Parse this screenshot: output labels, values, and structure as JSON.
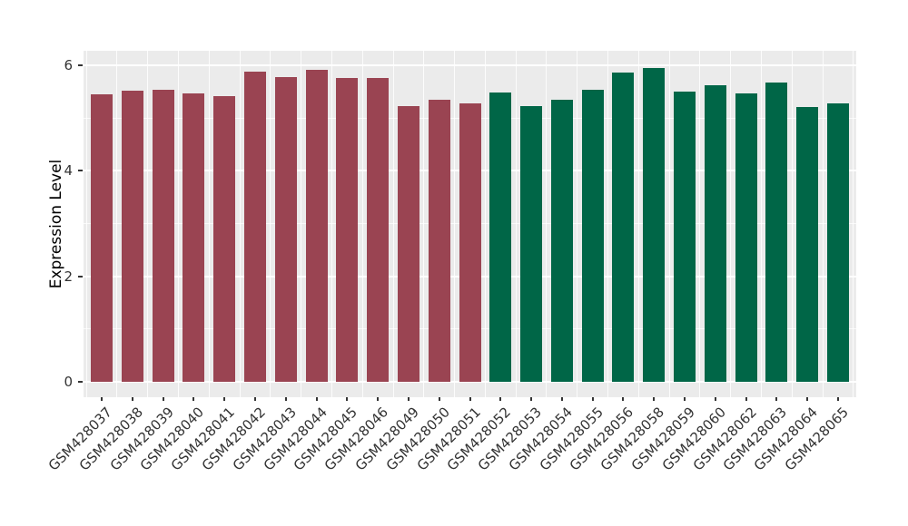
{
  "chart_data": {
    "type": "bar",
    "title": "",
    "xlabel": "",
    "ylabel": "Expression Level",
    "ylim": [
      0,
      6.27
    ],
    "yticks": [
      0,
      2,
      4,
      6
    ],
    "yminor": [
      1,
      3,
      5
    ],
    "grid": true,
    "legend_position": "none",
    "panel_background": "#EBEBEB",
    "grid_color": "#FFFFFF",
    "axis_text_color": "#333333",
    "categories": [
      "GSM428037",
      "GSM428038",
      "GSM428039",
      "GSM428040",
      "GSM428041",
      "GSM428042",
      "GSM428043",
      "GSM428044",
      "GSM428045",
      "GSM428046",
      "GSM428049",
      "GSM428050",
      "GSM428051",
      "GSM428052",
      "GSM428053",
      "GSM428054",
      "GSM428055",
      "GSM428056",
      "GSM428058",
      "GSM428059",
      "GSM428060",
      "GSM428062",
      "GSM428063",
      "GSM428064",
      "GSM428065"
    ],
    "values": [
      5.44,
      5.51,
      5.53,
      5.46,
      5.41,
      5.87,
      5.78,
      5.91,
      5.75,
      5.75,
      5.22,
      5.34,
      5.27,
      5.48,
      5.23,
      5.35,
      5.53,
      5.86,
      5.95,
      5.5,
      5.62,
      5.46,
      5.67,
      5.2,
      5.28
    ],
    "groups": [
      "group1",
      "group1",
      "group1",
      "group1",
      "group1",
      "group1",
      "group1",
      "group1",
      "group1",
      "group1",
      "group1",
      "group1",
      "group1",
      "group2",
      "group2",
      "group2",
      "group2",
      "group2",
      "group2",
      "group2",
      "group2",
      "group2",
      "group2",
      "group2",
      "group2"
    ],
    "group_colors": {
      "group1": "#9A4452",
      "group2": "#006647"
    }
  }
}
